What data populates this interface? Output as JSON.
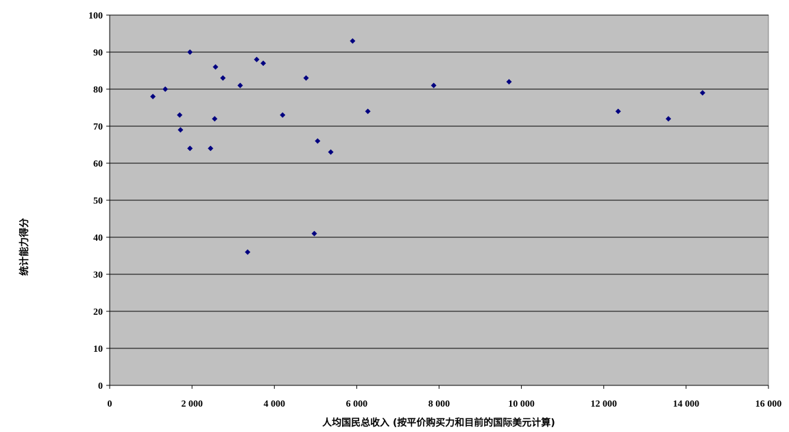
{
  "chart_data": {
    "type": "scatter",
    "title": "",
    "xlabel": "人均国民总收入 (按平价购买力和目前的国际美元计算)",
    "ylabel": "统计能力得分",
    "xlim": [
      0,
      16000
    ],
    "ylim": [
      0,
      100
    ],
    "x_ticks": [
      0,
      2000,
      4000,
      6000,
      8000,
      10000,
      12000,
      14000,
      16000
    ],
    "x_tick_labels": [
      "0",
      "2 000",
      "4 000",
      "6 000",
      "8 000",
      "10 000",
      "12 000",
      "14 000",
      "16 000"
    ],
    "y_ticks": [
      0,
      10,
      20,
      30,
      40,
      50,
      60,
      70,
      80,
      90,
      100
    ],
    "y_tick_labels": [
      "0",
      "10",
      "20",
      "30",
      "40",
      "50",
      "60",
      "70",
      "80",
      "90",
      "100"
    ],
    "grid": "horizontal",
    "legend": "none",
    "colors": {
      "plot_bg": "#c0c0c0",
      "marker": "#000080",
      "grid": "#000000"
    },
    "points": [
      {
        "x": 1050,
        "y": 78
      },
      {
        "x": 1350,
        "y": 80
      },
      {
        "x": 1700,
        "y": 73
      },
      {
        "x": 1720,
        "y": 69
      },
      {
        "x": 1950,
        "y": 90
      },
      {
        "x": 1950,
        "y": 64
      },
      {
        "x": 2450,
        "y": 64
      },
      {
        "x": 2550,
        "y": 72
      },
      {
        "x": 2570,
        "y": 86
      },
      {
        "x": 2750,
        "y": 83
      },
      {
        "x": 3170,
        "y": 81
      },
      {
        "x": 3350,
        "y": 36
      },
      {
        "x": 3570,
        "y": 88
      },
      {
        "x": 3730,
        "y": 87
      },
      {
        "x": 4200,
        "y": 73
      },
      {
        "x": 4770,
        "y": 83
      },
      {
        "x": 4970,
        "y": 41
      },
      {
        "x": 5050,
        "y": 66
      },
      {
        "x": 5370,
        "y": 63
      },
      {
        "x": 5900,
        "y": 93
      },
      {
        "x": 6270,
        "y": 74
      },
      {
        "x": 7870,
        "y": 81
      },
      {
        "x": 9700,
        "y": 82
      },
      {
        "x": 12350,
        "y": 74
      },
      {
        "x": 13570,
        "y": 72
      },
      {
        "x": 14400,
        "y": 79
      }
    ]
  }
}
